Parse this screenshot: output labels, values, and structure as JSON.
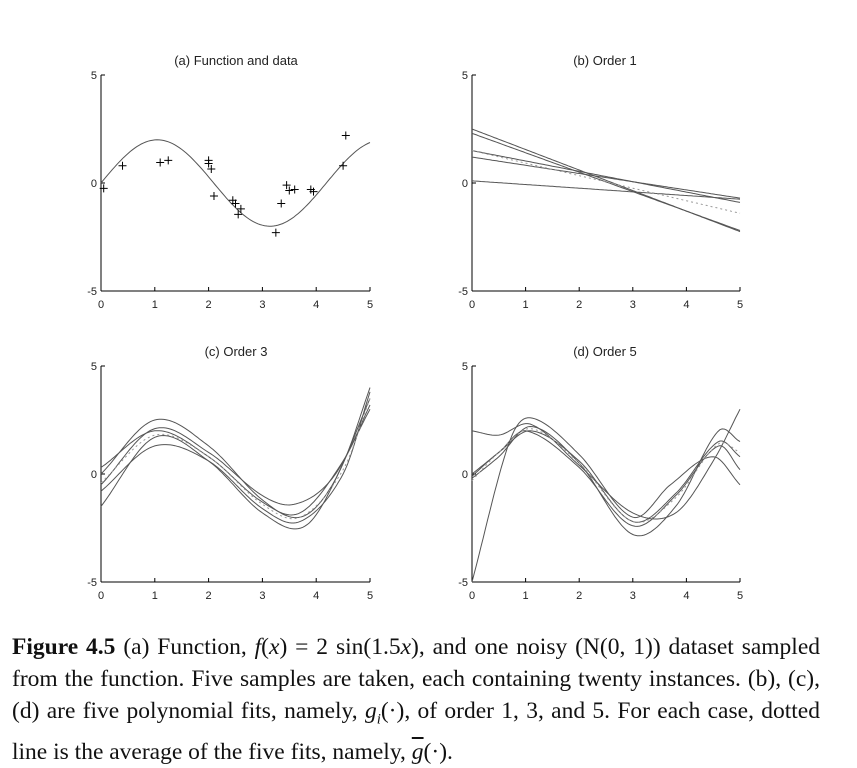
{
  "figure": {
    "panels": [
      {
        "id": "a",
        "title": "(a) Function and data"
      },
      {
        "id": "b",
        "title": "(b) Order 1"
      },
      {
        "id": "c",
        "title": "(c) Order 3"
      },
      {
        "id": "d",
        "title": "(d) Order 5"
      }
    ]
  },
  "chart_data": [
    {
      "type": "scatter",
      "title": "(a) Function and data",
      "xlim": [
        0,
        5
      ],
      "ylim": [
        -5,
        5
      ],
      "xticks": [
        "0",
        "1",
        "2",
        "3",
        "4",
        "5"
      ],
      "yticks": [
        "-5",
        "0",
        "5"
      ],
      "series": [
        {
          "kind": "line",
          "expr": "2*sin(1.5x)"
        },
        {
          "kind": "points",
          "marker": "+",
          "x": [
            0.05,
            0.4,
            1.1,
            1.25,
            2.0,
            2.0,
            2.05,
            2.1,
            2.45,
            2.5,
            2.55,
            2.6,
            3.25,
            3.35,
            3.45,
            3.5,
            3.6,
            3.9,
            3.95,
            4.5,
            4.55
          ],
          "y": [
            -0.25,
            0.8,
            0.95,
            1.05,
            1.05,
            0.9,
            0.65,
            -0.6,
            -0.8,
            -0.95,
            -1.45,
            -1.2,
            -2.3,
            -0.95,
            -0.1,
            -0.35,
            -0.3,
            -0.3,
            -0.4,
            0.8,
            2.2
          ]
        }
      ]
    },
    {
      "type": "line",
      "title": "(b) Order 1",
      "xlim": [
        0,
        5
      ],
      "ylim": [
        -5,
        5
      ],
      "xticks": [
        "0",
        "1",
        "2",
        "3",
        "4",
        "5"
      ],
      "yticks": [
        "-5",
        "0",
        "5"
      ],
      "series": [
        {
          "coef": [
            2.5,
            -0.95
          ]
        },
        {
          "coef": [
            2.3,
            -0.9
          ]
        },
        {
          "coef": [
            1.5,
            -0.48
          ]
        },
        {
          "coef": [
            1.2,
            -0.38
          ]
        },
        {
          "coef": [
            0.1,
            -0.17
          ]
        },
        {
          "coef": [
            1.5,
            -0.58
          ],
          "style": "dotted"
        }
      ]
    },
    {
      "type": "line",
      "title": "(c) Order 3",
      "xlim": [
        0,
        5
      ],
      "ylim": [
        -5,
        5
      ],
      "xticks": [
        "0",
        "1",
        "2",
        "3",
        "4",
        "5"
      ],
      "yticks": [
        "-5",
        "0",
        "5"
      ],
      "series": [
        {
          "knots": [
            [
              0,
              0
            ],
            [
              1,
              2.5
            ],
            [
              2,
              1.3
            ],
            [
              3,
              -1.2
            ],
            [
              3.7,
              -2.0
            ],
            [
              4.3,
              -0.5
            ],
            [
              5,
              3.5
            ]
          ]
        },
        {
          "knots": [
            [
              0,
              -1.5
            ],
            [
              1,
              1.7
            ],
            [
              2,
              0.6
            ],
            [
              3,
              -1.8
            ],
            [
              3.8,
              -2.4
            ],
            [
              4.5,
              0.5
            ],
            [
              5,
              4.0
            ]
          ]
        },
        {
          "knots": [
            [
              0,
              -0.8
            ],
            [
              1,
              1.3
            ],
            [
              2,
              0.6
            ],
            [
              3,
              -1.6
            ],
            [
              3.7,
              -2.2
            ],
            [
              4.5,
              0.0
            ],
            [
              5,
              3.8
            ]
          ]
        },
        {
          "knots": [
            [
              0,
              0.3
            ],
            [
              1,
              2.0
            ],
            [
              2,
              0.8
            ],
            [
              3,
              -1.3
            ],
            [
              3.7,
              -1.8
            ],
            [
              4.5,
              0.6
            ],
            [
              5,
              3.2
            ]
          ]
        },
        {
          "knots": [
            [
              0,
              -0.5
            ],
            [
              1,
              2.1
            ],
            [
              2,
              1.0
            ],
            [
              3,
              -1.0
            ],
            [
              3.6,
              -1.4
            ],
            [
              4.3,
              -0.2
            ],
            [
              5,
              3.0
            ]
          ]
        },
        {
          "knots": [
            [
              0,
              -0.4
            ],
            [
              1,
              1.8
            ],
            [
              2,
              0.8
            ],
            [
              3,
              -1.4
            ],
            [
              3.7,
              -2.0
            ],
            [
              4.5,
              0.2
            ],
            [
              5,
              3.5
            ]
          ],
          "style": "dotted"
        }
      ]
    },
    {
      "type": "line",
      "title": "(d) Order 5",
      "xlim": [
        0,
        5
      ],
      "ylim": [
        -5,
        5
      ],
      "xticks": [
        "0",
        "1",
        "2",
        "3",
        "4",
        "5"
      ],
      "yticks": [
        "-5",
        "0",
        "5"
      ],
      "series": [
        {
          "knots": [
            [
              0,
              -5
            ],
            [
              0.7,
              1.5
            ],
            [
              1.1,
              2.6
            ],
            [
              2,
              0.9
            ],
            [
              3,
              -2.0
            ],
            [
              3.7,
              -0.5
            ],
            [
              4.5,
              0.8
            ],
            [
              5,
              -0.5
            ]
          ]
        },
        {
          "knots": [
            [
              0,
              2.0
            ],
            [
              0.5,
              1.8
            ],
            [
              1.1,
              2.3
            ],
            [
              2,
              0.4
            ],
            [
              3,
              -1.8
            ],
            [
              3.8,
              -1.8
            ],
            [
              4.5,
              0.6
            ],
            [
              5,
              3.0
            ]
          ]
        },
        {
          "knots": [
            [
              0,
              -0.2
            ],
            [
              0.5,
              0.8
            ],
            [
              1.1,
              2.2
            ],
            [
              2,
              0.5
            ],
            [
              3,
              -2.8
            ],
            [
              3.8,
              -1.5
            ],
            [
              4.6,
              2.0
            ],
            [
              5,
              1.5
            ]
          ]
        },
        {
          "knots": [
            [
              0,
              0.0
            ],
            [
              0.5,
              1.0
            ],
            [
              1,
              2.0
            ],
            [
              2,
              0.3
            ],
            [
              3,
              -2.4
            ],
            [
              3.8,
              -1.0
            ],
            [
              4.6,
              1.3
            ],
            [
              5,
              0.2
            ]
          ]
        },
        {
          "knots": [
            [
              0,
              -0.1
            ],
            [
              0.5,
              1.0
            ],
            [
              1.1,
              2.0
            ],
            [
              2,
              0.6
            ],
            [
              3,
              -2.2
            ],
            [
              3.8,
              -0.9
            ],
            [
              4.6,
              1.5
            ],
            [
              5,
              0.8
            ]
          ]
        },
        {
          "knots": [
            [
              0,
              -0.3
            ],
            [
              0.5,
              1.0
            ],
            [
              1.1,
              2.1
            ],
            [
              2,
              0.5
            ],
            [
              3,
              -2.2
            ],
            [
              3.8,
              -1.1
            ],
            [
              4.6,
              1.4
            ],
            [
              5,
              1.0
            ]
          ],
          "style": "dotted"
        }
      ]
    }
  ]
}
